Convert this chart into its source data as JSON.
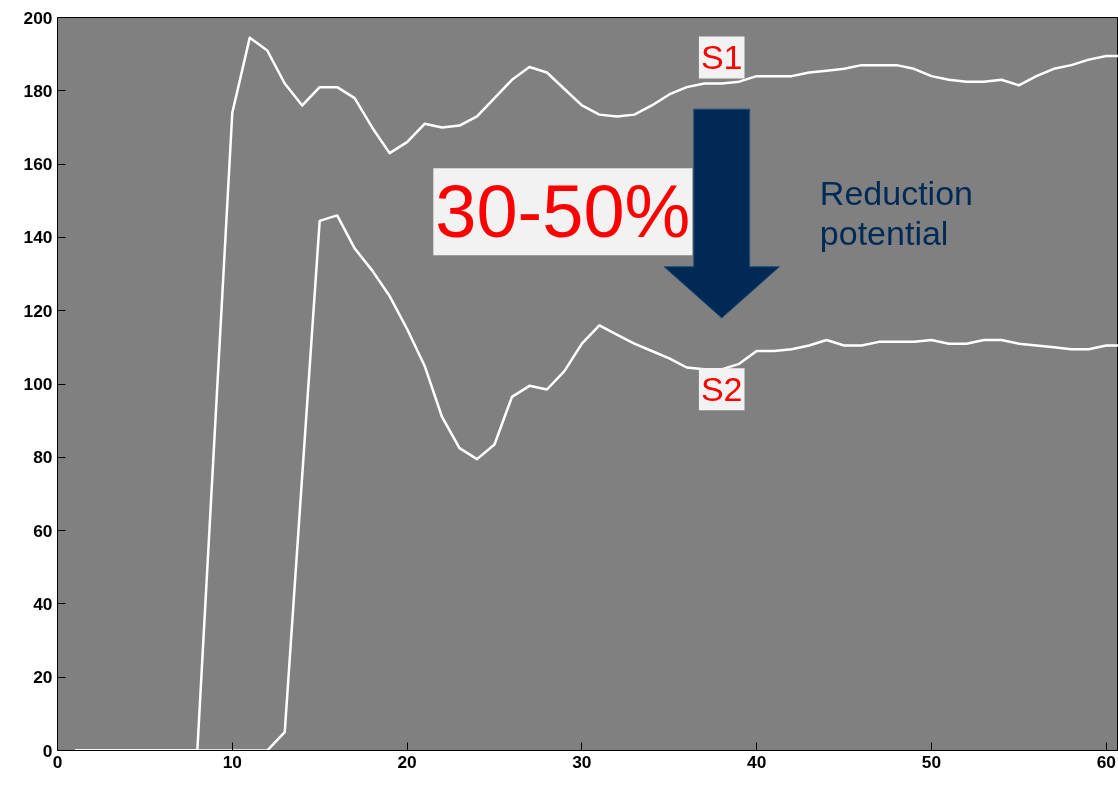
{
  "chart_data": {
    "type": "line",
    "xlim": [
      0,
      60.7
    ],
    "ylim": [
      0,
      200
    ],
    "xticks": [
      0,
      10,
      20,
      30,
      40,
      50,
      60
    ],
    "yticks": [
      0,
      20,
      40,
      60,
      80,
      100,
      120,
      140,
      160,
      180,
      200
    ],
    "grid": false,
    "marker": "none",
    "line_style": "solid",
    "series": [
      {
        "color": "#ffffff",
        "x": [
          1,
          2,
          3,
          4,
          5,
          6,
          7,
          8,
          9,
          10,
          11,
          12,
          13,
          14,
          15,
          16,
          17,
          18,
          19,
          20,
          21,
          22,
          23,
          24,
          25,
          26,
          27,
          28,
          29,
          30,
          31,
          32,
          33,
          34,
          35,
          36,
          37,
          38,
          39,
          40,
          41,
          42,
          43,
          44,
          45,
          46,
          47,
          48,
          49,
          50,
          51,
          52,
          53,
          54,
          55,
          56,
          57,
          58,
          59,
          60,
          60.7
        ],
        "values": [
          0,
          0,
          0,
          0,
          0,
          0,
          0,
          0,
          87,
          174,
          194.5,
          191,
          182,
          176,
          181,
          181,
          178,
          170,
          163,
          166,
          171,
          170,
          170.5,
          173,
          178,
          183,
          186.5,
          185,
          180.5,
          176,
          173.5,
          173,
          173.5,
          176,
          179,
          181,
          182,
          182,
          182.5,
          184,
          184,
          184,
          185,
          185.5,
          186,
          187,
          187,
          187,
          186,
          184,
          183,
          182.5,
          182.5,
          183,
          181.5,
          184,
          186,
          187,
          188.5,
          189.5,
          189.5
        ]
      },
      {
        "color": "#ffffff",
        "x": [
          1,
          2,
          3,
          4,
          5,
          6,
          7,
          8,
          9,
          10,
          11,
          12,
          13,
          14,
          15,
          16,
          17,
          18,
          19,
          20,
          21,
          22,
          23,
          24,
          25,
          26,
          27,
          28,
          29,
          30,
          31,
          32,
          33,
          34,
          35,
          36,
          37,
          38,
          39,
          40,
          41,
          42,
          43,
          44,
          45,
          46,
          47,
          48,
          49,
          50,
          51,
          52,
          53,
          54,
          55,
          56,
          57,
          58,
          59,
          60,
          60.7
        ],
        "values": [
          0,
          0,
          0,
          0,
          0,
          0,
          0,
          0,
          0,
          0,
          0,
          0,
          5,
          75,
          144.5,
          146,
          137,
          131,
          124,
          115,
          105,
          91,
          82.5,
          79.5,
          83.5,
          96.5,
          99.5,
          98.5,
          103.5,
          111,
          116,
          113.5,
          111,
          109,
          107,
          104.5,
          104,
          104,
          105.5,
          109,
          109,
          109.5,
          110.5,
          112,
          110.5,
          110.5,
          111.5,
          111.5,
          111.5,
          112,
          111,
          111,
          112,
          112,
          111,
          110.5,
          110,
          109.5,
          109.5,
          110.5,
          110.5
        ]
      }
    ],
    "annotations": [
      {
        "text": "S1",
        "x": 38,
        "y": 182
      },
      {
        "text": "S2",
        "x": 38,
        "y": 104
      },
      "30-50%",
      "Reduction potential"
    ]
  }
}
